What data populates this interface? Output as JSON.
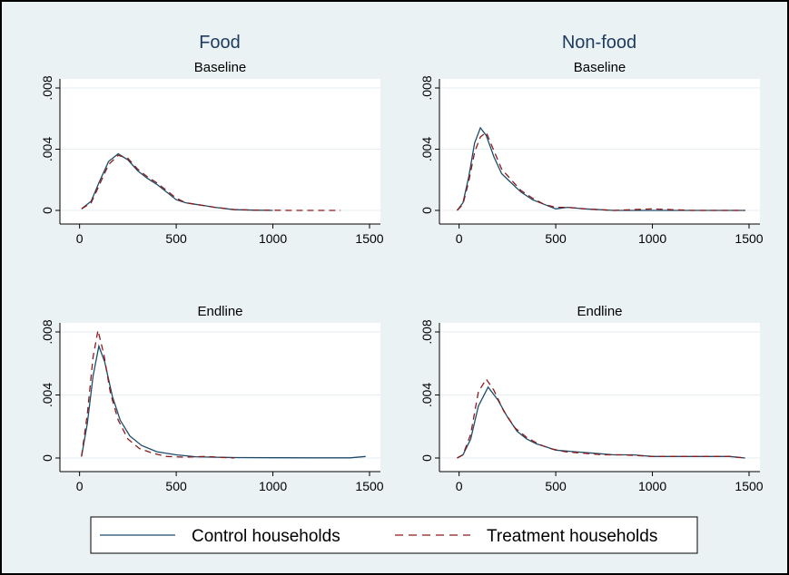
{
  "figure": {
    "column_titles": [
      "Food",
      "Non-food"
    ],
    "legend": {
      "series": [
        {
          "name": "Control households",
          "color": "#1c4b6b",
          "dash": "solid"
        },
        {
          "name": "Treatment households",
          "color": "#8b1a1a",
          "dash": "dashed"
        }
      ]
    }
  },
  "chart_data": [
    {
      "type": "line",
      "column": "Food",
      "title": "Baseline",
      "xlim": [
        -50,
        1500
      ],
      "ylim": [
        0,
        0.008
      ],
      "xticks": [
        0,
        500,
        1000,
        1500
      ],
      "xtick_labels": [
        "0",
        "500",
        "1000",
        "1500"
      ],
      "yticks": [
        0,
        0.004,
        0.008
      ],
      "ytick_labels": [
        "0",
        ".004",
        ".008"
      ],
      "series": [
        {
          "name": "Control households",
          "x": [
            10,
            60,
            100,
            150,
            200,
            250,
            300,
            350,
            400,
            450,
            500,
            550,
            600,
            650,
            700,
            800,
            900,
            1000
          ],
          "y": [
            0.0001,
            0.0006,
            0.0018,
            0.0032,
            0.0037,
            0.0033,
            0.0026,
            0.0021,
            0.0017,
            0.0012,
            0.0007,
            0.0005,
            0.0004,
            0.0003,
            0.0002,
            5e-05,
            2e-05,
            0.0
          ]
        },
        {
          "name": "Treatment households",
          "x": [
            10,
            60,
            100,
            150,
            200,
            250,
            300,
            350,
            400,
            450,
            500,
            550,
            600,
            650,
            700,
            800,
            900,
            1000,
            1100,
            1200,
            1350
          ],
          "y": [
            0.0001,
            0.0005,
            0.0016,
            0.003,
            0.0036,
            0.0034,
            0.0027,
            0.0022,
            0.0018,
            0.0013,
            0.0008,
            0.0005,
            0.0004,
            0.0003,
            0.0002,
            6e-05,
            2e-05,
            1e-05,
            0.0,
            0.0,
            0.0
          ]
        }
      ]
    },
    {
      "type": "line",
      "column": "Non-food",
      "title": "Baseline",
      "xlim": [
        -50,
        1500
      ],
      "ylim": [
        0,
        0.008
      ],
      "xticks": [
        0,
        500,
        1000,
        1500
      ],
      "xtick_labels": [
        "0",
        "500",
        "1000",
        "1500"
      ],
      "yticks": [
        0,
        0.004,
        0.008
      ],
      "ytick_labels": [
        "0",
        ".004",
        ".008"
      ],
      "series": [
        {
          "name": "Control households",
          "x": [
            -10,
            20,
            50,
            80,
            110,
            140,
            180,
            220,
            270,
            320,
            380,
            440,
            500,
            560,
            650,
            800,
            1000,
            1200,
            1480
          ],
          "y": [
            0.0,
            0.0005,
            0.0022,
            0.0044,
            0.0054,
            0.0049,
            0.0035,
            0.0024,
            0.0018,
            0.0012,
            0.0007,
            0.0004,
            0.0001,
            0.0002,
            0.0001,
            0.0,
            0.0,
            0.0,
            0.0
          ]
        },
        {
          "name": "Treatment households",
          "x": [
            -10,
            20,
            50,
            80,
            110,
            140,
            180,
            220,
            270,
            320,
            380,
            440,
            500,
            560,
            650,
            800,
            1000,
            1200,
            1480
          ],
          "y": [
            0.0,
            0.0004,
            0.0019,
            0.0038,
            0.0048,
            0.0051,
            0.0039,
            0.0027,
            0.002,
            0.0013,
            0.0008,
            0.0004,
            0.0002,
            0.0002,
            0.0001,
            0.0,
            0.0001,
            0.0,
            0.0
          ]
        }
      ]
    },
    {
      "type": "line",
      "column": "Food",
      "title": "Endline",
      "xlim": [
        -50,
        1500
      ],
      "ylim": [
        0,
        0.008
      ],
      "xticks": [
        0,
        500,
        1000,
        1500
      ],
      "xtick_labels": [
        "0",
        "500",
        "1000",
        "1500"
      ],
      "yticks": [
        0,
        0.004,
        0.008
      ],
      "ytick_labels": [
        "0",
        ".004",
        ".008"
      ],
      "series": [
        {
          "name": "Control households",
          "x": [
            10,
            40,
            70,
            100,
            130,
            170,
            210,
            260,
            320,
            400,
            500,
            600,
            700,
            800,
            1000,
            1200,
            1400,
            1480
          ],
          "y": [
            0.0001,
            0.0022,
            0.0052,
            0.0071,
            0.0061,
            0.0039,
            0.0024,
            0.0014,
            0.0008,
            0.0004,
            0.0002,
            8e-05,
            5e-05,
            3e-05,
            2e-05,
            1e-05,
            1e-05,
            0.0001
          ]
        },
        {
          "name": "Treatment households",
          "x": [
            10,
            40,
            70,
            95,
            125,
            160,
            200,
            250,
            310,
            380,
            450,
            550,
            650,
            800
          ],
          "y": [
            0.0001,
            0.0028,
            0.0064,
            0.0081,
            0.0066,
            0.0041,
            0.0024,
            0.0012,
            0.0006,
            0.0003,
            0.0001,
            5e-05,
            0.0001,
            0.0
          ]
        }
      ]
    },
    {
      "type": "line",
      "column": "Non-food",
      "title": "Endline",
      "xlim": [
        -50,
        1500
      ],
      "ylim": [
        0,
        0.008
      ],
      "xticks": [
        0,
        500,
        1000,
        1500
      ],
      "xtick_labels": [
        "0",
        "500",
        "1000",
        "1500"
      ],
      "yticks": [
        0,
        0.004,
        0.008
      ],
      "ytick_labels": [
        "0",
        ".004",
        ".008"
      ],
      "series": [
        {
          "name": "Control households",
          "x": [
            -10,
            20,
            60,
            100,
            150,
            200,
            250,
            300,
            350,
            400,
            450,
            500,
            600,
            700,
            800,
            900,
            1000,
            1200,
            1400,
            1480
          ],
          "y": [
            0.0,
            0.0002,
            0.0012,
            0.0033,
            0.0045,
            0.0037,
            0.0026,
            0.0017,
            0.0012,
            0.0009,
            0.0007,
            0.0005,
            0.0004,
            0.0003,
            0.0002,
            0.0002,
            0.0001,
            0.0001,
            0.0001,
            0.0
          ]
        },
        {
          "name": "Treatment households",
          "x": [
            -10,
            20,
            60,
            100,
            140,
            180,
            230,
            290,
            350,
            410,
            470,
            550,
            650,
            750,
            850,
            1000,
            1200,
            1400,
            1480
          ],
          "y": [
            0.0,
            0.0002,
            0.0015,
            0.0042,
            0.005,
            0.0043,
            0.003,
            0.0019,
            0.0013,
            0.0009,
            0.0006,
            0.0004,
            0.0003,
            0.0002,
            0.0002,
            0.0001,
            0.0001,
            0.0001,
            0.0
          ]
        }
      ]
    }
  ]
}
